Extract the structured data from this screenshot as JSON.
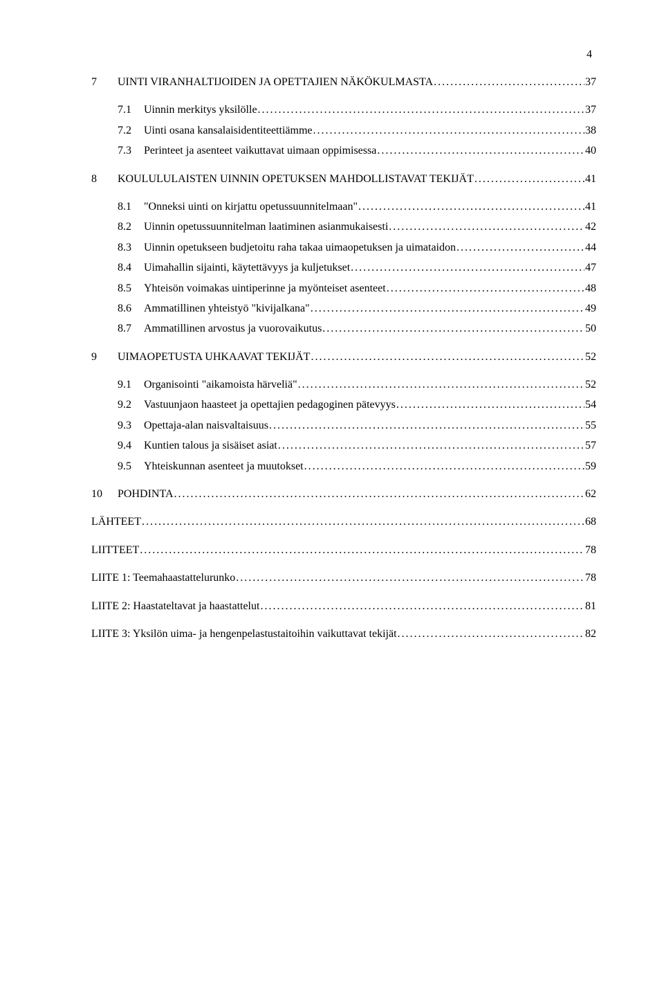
{
  "page_number": "4",
  "typography": {
    "font_family": "Times New Roman",
    "body_fontsize_pt": 12,
    "color": "#000000"
  },
  "background_color": "#ffffff",
  "toc": [
    {
      "level": 1,
      "num": "7",
      "title": "UINTI VIRANHALTIJOIDEN JA OPETTAJIEN NÄKÖKULMASTA",
      "page": "37",
      "gap_before": false
    },
    {
      "level": 2,
      "num": "7.1",
      "title": "Uinnin merkitys yksilölle",
      "page": "37",
      "gap_before": true
    },
    {
      "level": 2,
      "num": "7.2",
      "title": "Uinti osana kansalaisidentiteettiämme",
      "page": "38",
      "gap_before": false
    },
    {
      "level": 2,
      "num": "7.3",
      "title": "Perinteet ja asenteet vaikuttavat uimaan oppimisessa",
      "page": "40",
      "gap_before": false
    },
    {
      "level": 1,
      "num": "8",
      "title": "KOULULULAISTEN UINNIN OPETUKSEN MAHDOLLISTAVAT TEKIJÄT",
      "page": "41",
      "gap_before": true
    },
    {
      "level": 2,
      "num": "8.1",
      "title": "\"Onneksi uinti on kirjattu opetussuunnitelmaan\"",
      "page": "41",
      "gap_before": true
    },
    {
      "level": 2,
      "num": "8.2",
      "title": "Uinnin opetussuunnitelman laatiminen asianmukaisesti",
      "page": "42",
      "gap_before": false
    },
    {
      "level": 2,
      "num": "8.3",
      "title": "Uinnin opetukseen budjetoitu raha takaa uimaopetuksen ja uimataidon",
      "page": "44",
      "gap_before": false
    },
    {
      "level": 2,
      "num": "8.4",
      "title": "Uimahallin sijainti, käytettävyys ja kuljetukset",
      "page": "47",
      "gap_before": false
    },
    {
      "level": 2,
      "num": "8.5",
      "title": "Yhteisön voimakas uintiperinne ja myönteiset asenteet",
      "page": "48",
      "gap_before": false
    },
    {
      "level": 2,
      "num": "8.6",
      "title": "Ammatillinen yhteistyö \"kivijalkana\"",
      "page": "49",
      "gap_before": false
    },
    {
      "level": 2,
      "num": "8.7",
      "title": "Ammatillinen arvostus ja vuorovaikutus",
      "page": "50",
      "gap_before": false
    },
    {
      "level": 1,
      "num": "9",
      "title": "UIMAOPETUSTA UHKAAVAT TEKIJÄT",
      "page": "52",
      "gap_before": true
    },
    {
      "level": 2,
      "num": "9.1",
      "title": "Organisointi \"aikamoista härveliä\"",
      "page": "52",
      "gap_before": true
    },
    {
      "level": 2,
      "num": "9.2",
      "title": "Vastuunjaon haasteet ja opettajien pedagoginen pätevyys",
      "page": "54",
      "gap_before": false
    },
    {
      "level": 2,
      "num": "9.3",
      "title": "Opettaja-alan naisvaltaisuus",
      "page": "55",
      "gap_before": false
    },
    {
      "level": 2,
      "num": "9.4",
      "title": "Kuntien talous ja sisäiset asiat",
      "page": "57",
      "gap_before": false
    },
    {
      "level": 2,
      "num": "9.5",
      "title": "Yhteiskunnan asenteet ja muutokset",
      "page": "59",
      "gap_before": false
    },
    {
      "level": 1,
      "num": "10",
      "title": "POHDINTA",
      "page": "62",
      "gap_before": true
    },
    {
      "level": 0,
      "title": "LÄHTEET",
      "page": "68",
      "gap_before": true
    },
    {
      "level": 0,
      "title": "LIITTEET",
      "page": "78",
      "gap_before": true
    },
    {
      "level": 0,
      "title": "LIITE 1: Teemahaastattelurunko",
      "page": "78",
      "gap_before": true
    },
    {
      "level": 0,
      "title": "LIITE 2: Haastateltavat ja haastattelut",
      "page": "81",
      "gap_before": true
    },
    {
      "level": 0,
      "title": "LIITE 3: Yksilön uima- ja hengenpelastustaitoihin vaikuttavat tekijät",
      "page": "82",
      "gap_before": true
    }
  ]
}
